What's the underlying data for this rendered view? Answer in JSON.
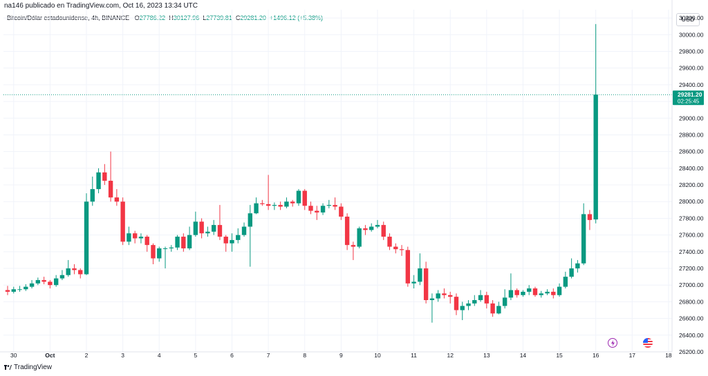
{
  "header": {
    "caption": "na146 publicado en TradingView.com, Oct 16, 2023 13:34 UTC",
    "symbol": "Bitcoin/Dólar estadounidense, 4h, BINANCE",
    "o_label": "O",
    "o_value": "27786.22",
    "h_label": "H",
    "h_value": "30127.96",
    "l_label": "L",
    "l_value": "27739.81",
    "c_label": "C",
    "c_value": "29281.20",
    "change": "+1496.12 (+5.38%)"
  },
  "currency": "USD",
  "price_badge": {
    "price": "29281.20",
    "countdown": "02:25:45"
  },
  "brand": {
    "name": "TradingView"
  },
  "colors": {
    "up": "#089981",
    "down": "#f23645",
    "grid": "#f0f3fa",
    "axis_text": "#131722",
    "badge": "#089981"
  },
  "events": [
    {
      "icon": "lightning-icon",
      "color": "#9c27b0"
    },
    {
      "icon": "us-flag-icon",
      "color": "#f23645"
    }
  ],
  "chart_data": {
    "type": "candlestick",
    "title": "",
    "xlabel": "",
    "ylabel": "",
    "ylim": [
      26200,
      30300
    ],
    "yticks": [
      "26200.00",
      "26400.00",
      "26600.00",
      "26800.00",
      "27000.00",
      "27200.00",
      "27400.00",
      "27600.00",
      "27800.00",
      "28000.00",
      "28200.00",
      "28400.00",
      "28600.00",
      "28800.00",
      "29000.00",
      "29200.00",
      "29400.00",
      "29600.00",
      "29800.00",
      "30000.00",
      "30200.00"
    ],
    "x_ticks": [
      {
        "label": "30",
        "bar": 1
      },
      {
        "label": "Oct",
        "bar": 7
      },
      {
        "label": "2",
        "bar": 13
      },
      {
        "label": "3",
        "bar": 19
      },
      {
        "label": "4",
        "bar": 25
      },
      {
        "label": "5",
        "bar": 31
      },
      {
        "label": "6",
        "bar": 37
      },
      {
        "label": "7",
        "bar": 43
      },
      {
        "label": "8",
        "bar": 49
      },
      {
        "label": "9",
        "bar": 55
      },
      {
        "label": "10",
        "bar": 61
      },
      {
        "label": "11",
        "bar": 67
      },
      {
        "label": "12",
        "bar": 73
      },
      {
        "label": "13",
        "bar": 79
      },
      {
        "label": "14",
        "bar": 85
      },
      {
        "label": "15",
        "bar": 91
      },
      {
        "label": "16",
        "bar": 97
      },
      {
        "label": "17",
        "bar": 103
      },
      {
        "label": "18",
        "bar": 109
      }
    ],
    "last_price": 29281.2,
    "candles": [
      [
        26940,
        26920,
        26990,
        26880
      ],
      [
        26920,
        26950,
        26980,
        26900
      ],
      [
        26950,
        26950,
        26990,
        26920
      ],
      [
        26950,
        26980,
        27010,
        26930
      ],
      [
        26980,
        27020,
        27060,
        26960
      ],
      [
        27020,
        27060,
        27090,
        27000
      ],
      [
        27060,
        27040,
        27100,
        27010
      ],
      [
        27040,
        27000,
        27060,
        26960
      ],
      [
        27000,
        27080,
        27120,
        26980
      ],
      [
        27080,
        27120,
        27180,
        27060
      ],
      [
        27120,
        27200,
        27300,
        27100
      ],
      [
        27200,
        27180,
        27250,
        27130
      ],
      [
        27180,
        27130,
        27200,
        27080
      ],
      [
        27130,
        28000,
        28100,
        27120
      ],
      [
        28000,
        28150,
        28300,
        27950
      ],
      [
        28150,
        28350,
        28400,
        28100
      ],
      [
        28350,
        28250,
        28450,
        28200
      ],
      [
        28250,
        28050,
        28600,
        28000
      ],
      [
        28050,
        28000,
        28150,
        27950
      ],
      [
        28000,
        27520,
        28050,
        27480
      ],
      [
        27520,
        27620,
        27700,
        27480
      ],
      [
        27620,
        27560,
        27650,
        27500
      ],
      [
        27560,
        27580,
        27620,
        27500
      ],
      [
        27580,
        27480,
        27600,
        27400
      ],
      [
        27480,
        27320,
        27500,
        27250
      ],
      [
        27320,
        27440,
        27460,
        27280
      ],
      [
        27440,
        27440,
        27460,
        27200
      ],
      [
        27440,
        27450,
        27480,
        27400
      ],
      [
        27450,
        27580,
        27600,
        27420
      ],
      [
        27580,
        27440,
        27620,
        27400
      ],
      [
        27440,
        27600,
        27700,
        27420
      ],
      [
        27600,
        27760,
        27880,
        27580
      ],
      [
        27760,
        27620,
        27800,
        27560
      ],
      [
        27620,
        27640,
        27700,
        27580
      ],
      [
        27640,
        27720,
        27780,
        27600
      ],
      [
        27720,
        27580,
        27960,
        27540
      ],
      [
        27580,
        27500,
        27600,
        27400
      ],
      [
        27500,
        27540,
        27620,
        27400
      ],
      [
        27540,
        27600,
        27680,
        27500
      ],
      [
        27600,
        27700,
        27750,
        27580
      ],
      [
        27700,
        27860,
        27960,
        27220
      ],
      [
        27860,
        27980,
        28050,
        27850
      ],
      [
        27980,
        27970,
        28020,
        27950
      ],
      [
        27970,
        27950,
        28320,
        27900
      ],
      [
        27950,
        27960,
        27990,
        27900
      ],
      [
        27960,
        27940,
        28000,
        27900
      ],
      [
        27940,
        28000,
        28050,
        27920
      ],
      [
        28000,
        27980,
        28020,
        27940
      ],
      [
        27980,
        28130,
        28150,
        27950
      ],
      [
        28130,
        27950,
        28150,
        27900
      ],
      [
        27950,
        27890,
        28000,
        27850
      ],
      [
        27890,
        27870,
        27950,
        27780
      ],
      [
        27870,
        27950,
        27980,
        27840
      ],
      [
        27950,
        27960,
        28020,
        27920
      ],
      [
        27960,
        27940,
        28050,
        27900
      ],
      [
        27940,
        27820,
        27980,
        27780
      ],
      [
        27820,
        27480,
        27860,
        27420
      ],
      [
        27480,
        27460,
        27520,
        27300
      ],
      [
        27460,
        27680,
        27700,
        27440
      ],
      [
        27680,
        27660,
        27720,
        27600
      ],
      [
        27660,
        27700,
        27740,
        27640
      ],
      [
        27700,
        27720,
        27780,
        27680
      ],
      [
        27720,
        27580,
        27760,
        27540
      ],
      [
        27580,
        27460,
        27620,
        27420
      ],
      [
        27460,
        27430,
        27500,
        27380
      ],
      [
        27430,
        27420,
        27480,
        27350
      ],
      [
        27420,
        27020,
        27460,
        26980
      ],
      [
        27020,
        27040,
        27120,
        26960
      ],
      [
        27040,
        27200,
        27380,
        27000
      ],
      [
        27200,
        26820,
        27280,
        26780
      ],
      [
        26820,
        26840,
        26900,
        26550
      ],
      [
        26840,
        26900,
        26940,
        26800
      ],
      [
        26900,
        26880,
        26960,
        26840
      ],
      [
        26880,
        26860,
        26920,
        26780
      ],
      [
        26860,
        26700,
        26900,
        26640
      ],
      [
        26700,
        26750,
        26800,
        26580
      ],
      [
        26750,
        26780,
        26820,
        26700
      ],
      [
        26780,
        26820,
        26880,
        26750
      ],
      [
        26820,
        26880,
        26940,
        26800
      ],
      [
        26880,
        26780,
        26920,
        26720
      ],
      [
        26780,
        26660,
        26820,
        26620
      ],
      [
        26660,
        26750,
        26800,
        26650
      ],
      [
        26750,
        26850,
        26950,
        26720
      ],
      [
        26850,
        26940,
        27140,
        26820
      ],
      [
        26940,
        26880,
        26960,
        26850
      ],
      [
        26880,
        26920,
        26940,
        26860
      ],
      [
        26920,
        26960,
        27000,
        26880
      ],
      [
        26960,
        26880,
        26980,
        26860
      ],
      [
        26880,
        26900,
        26930,
        26850
      ],
      [
        26900,
        26920,
        26950,
        26880
      ],
      [
        26920,
        26880,
        26960,
        26840
      ],
      [
        26880,
        26980,
        27020,
        26860
      ],
      [
        26980,
        27100,
        27160,
        26960
      ],
      [
        27100,
        27200,
        27320,
        27080
      ],
      [
        27200,
        27260,
        27300,
        27150
      ],
      [
        27260,
        27850,
        27980,
        27240
      ],
      [
        27850,
        27780,
        27900,
        27660
      ],
      [
        27786.22,
        29281.2,
        30127.96,
        27739.81
      ]
    ]
  }
}
